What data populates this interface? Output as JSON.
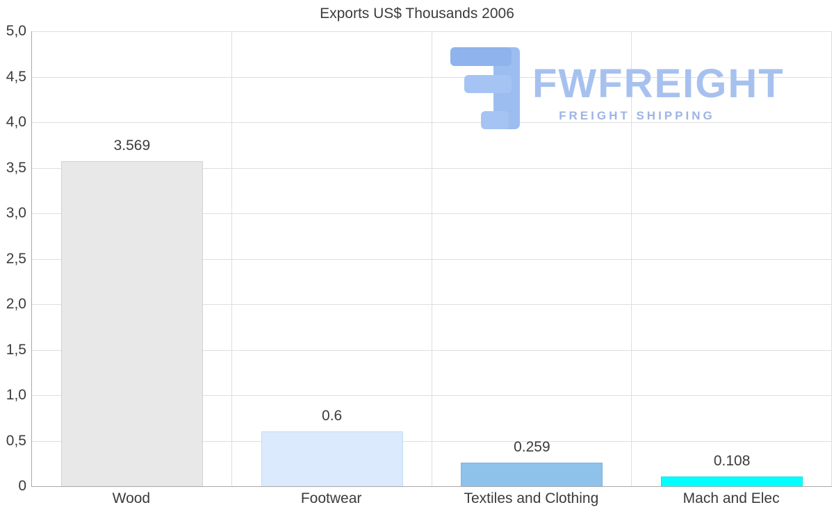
{
  "chart_data": {
    "type": "bar",
    "title": "Exports US$ Thousands 2006",
    "categories": [
      "Wood",
      "Footwear",
      "Textiles and Clothing",
      "Mach and Elec"
    ],
    "values": [
      3.569,
      0.6,
      0.259,
      0.108
    ],
    "value_labels": [
      "3.569",
      "0.6",
      "0.259",
      "0.108"
    ],
    "bar_colors": [
      "#e8e8e8",
      "#dbeafc",
      "#8fc2ea",
      "#00ffff"
    ],
    "bar_border_colors": [
      "#d2d2d2",
      "#c6ddf4",
      "#7ab3e3",
      "#00e4e4"
    ],
    "ylim": [
      0,
      5
    ],
    "ytick_labels": [
      "5,0",
      "4,5",
      "4,0",
      "3,5",
      "3,0",
      "2,5",
      "2,0",
      "1,5",
      "1,0",
      "0,5",
      "0"
    ],
    "grid": true,
    "legend": false,
    "xlabel": "",
    "ylabel": ""
  },
  "logo": {
    "brand": "FWFREIGHT",
    "tagline": "FREIGHT SHIPPING",
    "color": "#a7c1ef"
  }
}
